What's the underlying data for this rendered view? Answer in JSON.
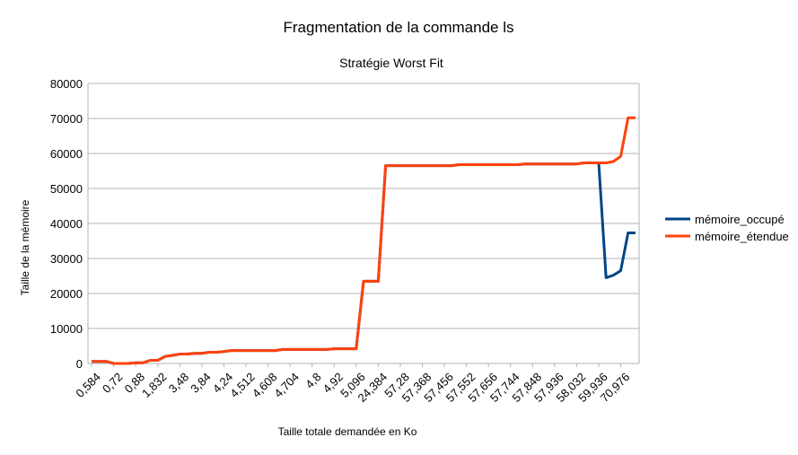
{
  "chart_data": {
    "type": "line",
    "title": "Fragmentation de la commande ls",
    "subtitle": "Stratégie Worst Fit",
    "xlabel": "Taille totale demandée en Ko",
    "ylabel": "Taille de la mémoire",
    "ylim": [
      0,
      80000
    ],
    "yticks": [
      0,
      10000,
      20000,
      30000,
      40000,
      50000,
      60000,
      70000,
      80000
    ],
    "grid": true,
    "legend_position": "right",
    "x_tick_labels": [
      "0,584",
      "0,72",
      "0,88",
      "1,832",
      "3,48",
      "3,84",
      "4,24",
      "4,512",
      "4,608",
      "4,704",
      "4,8",
      "4,92",
      "5,096",
      "24,384",
      "57,28",
      "57,368",
      "57,456",
      "57,552",
      "57,656",
      "57,744",
      "57,848",
      "57,936",
      "58,032",
      "59,936",
      "70,976"
    ],
    "point_count": 75,
    "series": [
      {
        "name": "mémoire_occupé",
        "color": "#004586",
        "values": [
          600,
          600,
          600,
          0,
          0,
          0,
          200,
          200,
          900,
          900,
          2000,
          2300,
          2700,
          2700,
          2900,
          2900,
          3200,
          3200,
          3400,
          3700,
          3700,
          3700,
          3700,
          3700,
          3700,
          3700,
          4000,
          4000,
          4000,
          4000,
          4000,
          4000,
          4000,
          4200,
          4200,
          4200,
          4200,
          23500,
          23500,
          23500,
          56500,
          56500,
          56500,
          56500,
          56500,
          56500,
          56500,
          56500,
          56500,
          56500,
          56800,
          56800,
          56800,
          56800,
          56800,
          56800,
          56800,
          56800,
          56800,
          57000,
          57000,
          57000,
          57000,
          57000,
          57000,
          57000,
          57000,
          57300,
          57300,
          57300,
          24500,
          25200,
          26500,
          37300,
          37300
        ]
      },
      {
        "name": "mémoire_étendue",
        "color": "#ff420e",
        "values": [
          600,
          600,
          600,
          0,
          0,
          0,
          200,
          200,
          900,
          900,
          2000,
          2300,
          2700,
          2700,
          2900,
          2900,
          3200,
          3200,
          3400,
          3700,
          3700,
          3700,
          3700,
          3700,
          3700,
          3700,
          4000,
          4000,
          4000,
          4000,
          4000,
          4000,
          4000,
          4200,
          4200,
          4200,
          4200,
          23500,
          23500,
          23500,
          56500,
          56500,
          56500,
          56500,
          56500,
          56500,
          56500,
          56500,
          56500,
          56500,
          56800,
          56800,
          56800,
          56800,
          56800,
          56800,
          56800,
          56800,
          56800,
          57000,
          57000,
          57000,
          57000,
          57000,
          57000,
          57000,
          57000,
          57300,
          57300,
          57300,
          57300,
          57700,
          59200,
          70200,
          70200
        ]
      }
    ]
  }
}
